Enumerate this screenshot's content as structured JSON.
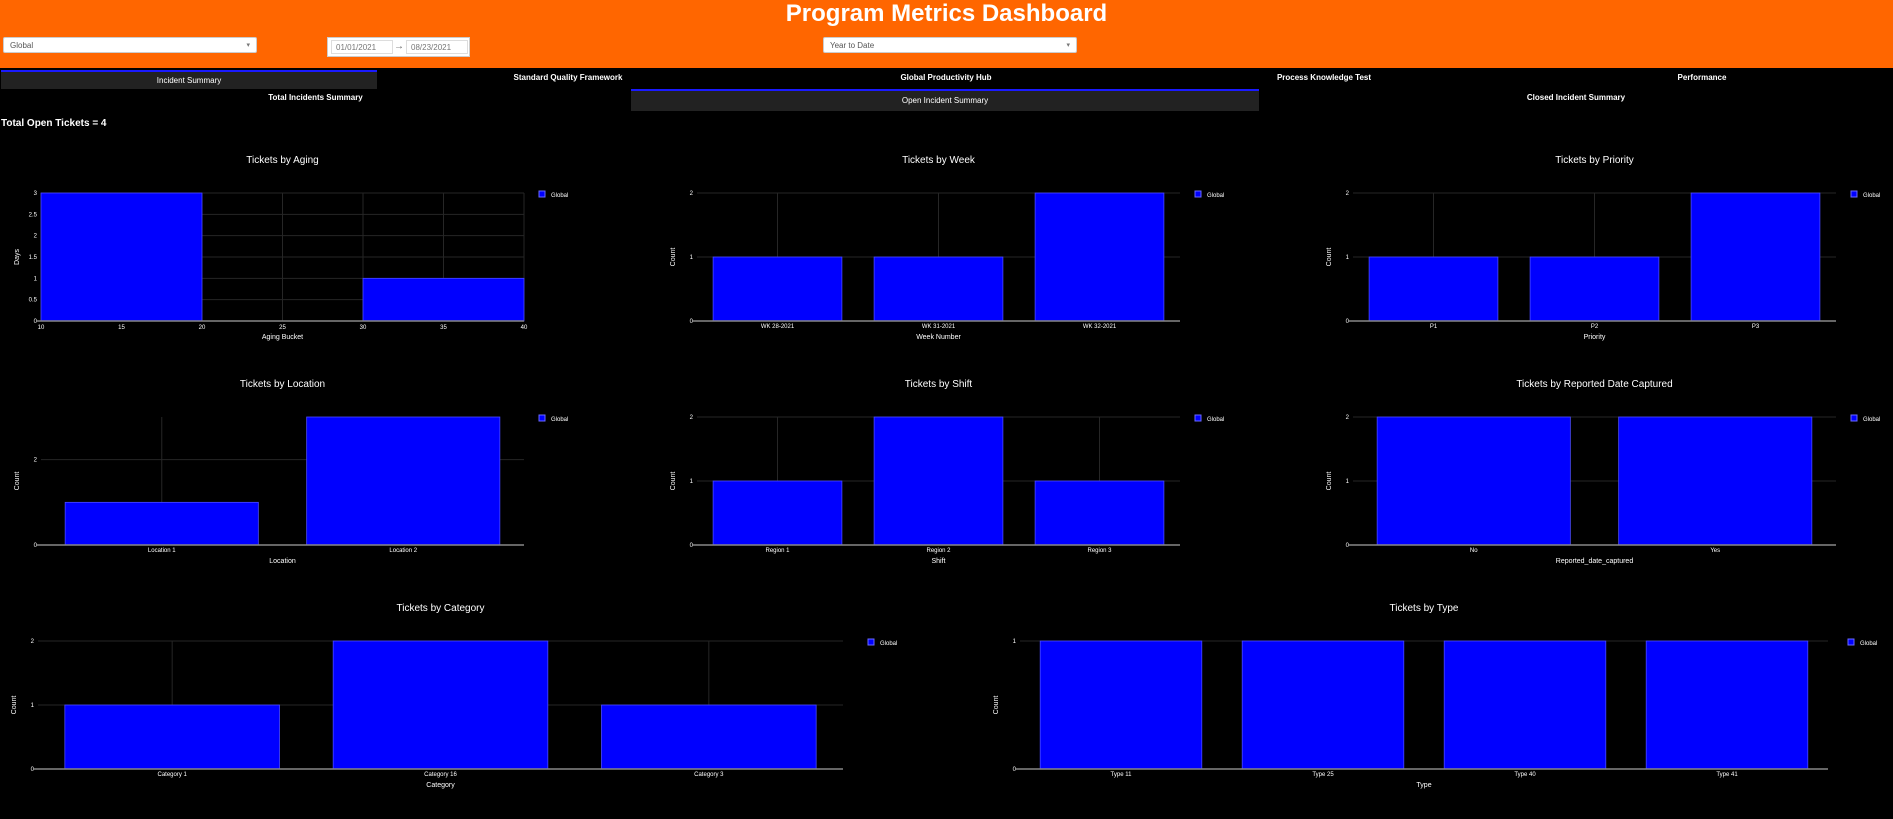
{
  "header": {
    "title": "Program Metrics Dashboard",
    "region_select": "Global",
    "date_start": "01/01/2021",
    "date_end": "08/23/2021",
    "period_select": "Year to Date"
  },
  "tabs": [
    {
      "label": "Incident Summary",
      "selected": true
    },
    {
      "label": "Standard Quality Framework",
      "selected": false
    },
    {
      "label": "Global Productivity Hub",
      "selected": false
    },
    {
      "label": "Process Knowledge Test",
      "selected": false
    },
    {
      "label": "Performance",
      "selected": false
    }
  ],
  "subtabs": [
    {
      "label": "Total Incidents Summary",
      "selected": false
    },
    {
      "label": "Open Incident Summary",
      "selected": true
    },
    {
      "label": "Closed Incident Summary",
      "selected": false
    }
  ],
  "summary": {
    "total_label": "Total Open Tickets = 4"
  },
  "colors": {
    "header": "#ff6600",
    "bar": "#0000ff",
    "background": "#000000"
  },
  "chart_data": [
    {
      "type": "bar",
      "title": "Tickets by Aging",
      "xlabel": "Aging Bucket",
      "ylabel": "Days",
      "x_numeric": true,
      "xlim": [
        10,
        40
      ],
      "xticks": [
        10,
        15,
        20,
        25,
        30,
        35,
        40
      ],
      "bars": [
        {
          "x0": 10,
          "x1": 20,
          "y": 3
        },
        {
          "x0": 30,
          "x1": 40,
          "y": 1
        }
      ],
      "ylim": [
        0,
        3
      ],
      "yticks": [
        0,
        0.5,
        1,
        1.5,
        2,
        2.5,
        3
      ],
      "legend": "Global"
    },
    {
      "type": "bar",
      "title": "Tickets by Week",
      "xlabel": "Week Number",
      "ylabel": "Count",
      "categories": [
        "WK 28-2021",
        "WK 31-2021",
        "WK 32-2021"
      ],
      "values": [
        1,
        1,
        2
      ],
      "ylim": [
        0,
        2
      ],
      "yticks": [
        0,
        1,
        2
      ],
      "legend": "Global"
    },
    {
      "type": "bar",
      "title": "Tickets by Priority",
      "xlabel": "Priority",
      "ylabel": "Count",
      "categories": [
        "P1",
        "P2",
        "P3"
      ],
      "values": [
        1,
        1,
        2
      ],
      "ylim": [
        0,
        2
      ],
      "yticks": [
        0,
        1,
        2
      ],
      "legend": "Global"
    },
    {
      "type": "bar",
      "title": "Tickets by Location",
      "xlabel": "Location",
      "ylabel": "Count",
      "categories": [
        "Location 1",
        "Location 2"
      ],
      "values": [
        1,
        3
      ],
      "ylim": [
        0,
        3
      ],
      "yticks": [
        0,
        2
      ],
      "legend": "Global"
    },
    {
      "type": "bar",
      "title": "Tickets by Shift",
      "xlabel": "Shift",
      "ylabel": "Count",
      "categories": [
        "Region 1",
        "Region 2",
        "Region 3"
      ],
      "values": [
        1,
        2,
        1
      ],
      "ylim": [
        0,
        2
      ],
      "yticks": [
        0,
        1,
        2
      ],
      "legend": "Global"
    },
    {
      "type": "bar",
      "title": "Tickets by Reported Date Captured",
      "xlabel": "Reported_date_captured",
      "ylabel": "Count",
      "categories": [
        "No",
        "Yes"
      ],
      "values": [
        2,
        2
      ],
      "ylim": [
        0,
        2
      ],
      "yticks": [
        0,
        1,
        2
      ],
      "legend": "Global"
    },
    {
      "type": "bar",
      "title": "Tickets by Category",
      "xlabel": "Category",
      "ylabel": "Count",
      "categories": [
        "Category 1",
        "Category 16",
        "Category 3"
      ],
      "values": [
        1,
        2,
        1
      ],
      "ylim": [
        0,
        2
      ],
      "yticks": [
        0,
        1,
        2
      ],
      "legend": "Global"
    },
    {
      "type": "bar",
      "title": "Tickets by Type",
      "xlabel": "Type",
      "ylabel": "Count",
      "categories": [
        "Type 11",
        "Type 25",
        "Type 40",
        "Type 41"
      ],
      "values": [
        1,
        1,
        1,
        1
      ],
      "ylim": [
        0,
        1
      ],
      "yticks": [
        0,
        1
      ],
      "legend": "Global"
    }
  ]
}
